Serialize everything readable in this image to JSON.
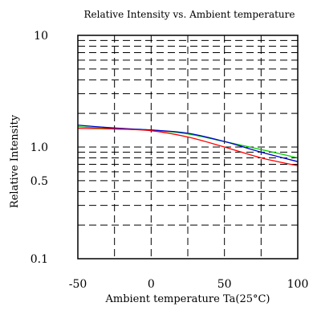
{
  "chart_data": {
    "type": "line",
    "title": "Relative Intensity vs. Ambient temperature",
    "xlabel": "Ambient temperature Ta(25°C)",
    "ylabel": "Relative Intensity",
    "xlim": [
      -50,
      100
    ],
    "ylim": [
      0.1,
      10
    ],
    "yscale": "log",
    "grid": true,
    "x_ticks": [
      -50,
      0,
      50,
      100
    ],
    "x_tick_labels": [
      "-50",
      "0",
      "50",
      "100"
    ],
    "y_ticks": [
      0.1,
      0.5,
      1.0,
      10
    ],
    "y_tick_labels": [
      "0.1",
      "0.5",
      "1.0",
      "10"
    ],
    "series": [
      {
        "color": "#00cc00",
        "x": [
          -50,
          -25,
          0,
          25,
          50,
          75,
          100
        ],
        "y": [
          1.52,
          1.46,
          1.42,
          1.31,
          1.12,
          0.95,
          0.8
        ]
      },
      {
        "color": "#0000cc",
        "x": [
          -50,
          -25,
          0,
          25,
          50,
          75,
          100
        ],
        "y": [
          1.57,
          1.48,
          1.42,
          1.33,
          1.12,
          0.9,
          0.74
        ]
      },
      {
        "color": "#ff0000",
        "x": [
          -50,
          -25,
          0,
          25,
          50,
          75,
          100
        ],
        "y": [
          1.47,
          1.45,
          1.4,
          1.23,
          1.0,
          0.8,
          0.68
        ]
      }
    ]
  }
}
